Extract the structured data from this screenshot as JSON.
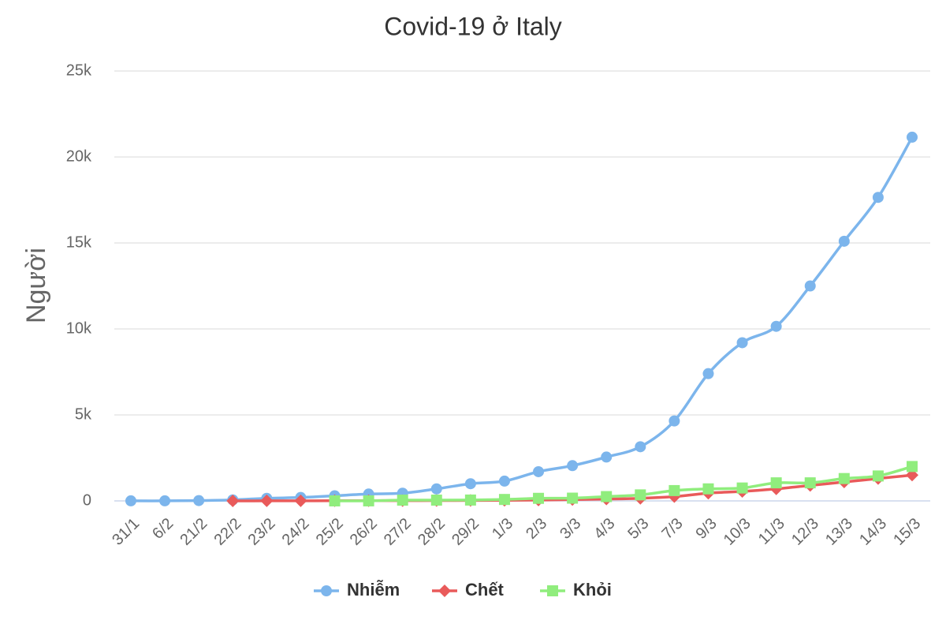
{
  "chart_data": {
    "type": "line",
    "title": "Covid-19 ở Italy",
    "y_label": "Người",
    "categories": [
      "31/1",
      "6/2",
      "21/2",
      "22/2",
      "23/2",
      "24/2",
      "25/2",
      "26/2",
      "27/2",
      "28/2",
      "29/2",
      "1/3",
      "2/3",
      "3/3",
      "4/3",
      "5/3",
      "7/3",
      "9/3",
      "10/3",
      "11/3",
      "12/3",
      "13/3",
      "14/3",
      "15/3"
    ],
    "series": [
      {
        "name": "Nhiễm",
        "color": "#7cb5ec",
        "marker": "circle",
        "values": [
          3,
          3,
          20,
          60,
          150,
          200,
          300,
          400,
          450,
          700,
          1000,
          1150,
          1700,
          2050,
          2550,
          3150,
          4650,
          7400,
          9200,
          10150,
          12500,
          15100,
          17650,
          21150
        ]
      },
      {
        "name": "Chết",
        "color": "#e95a5a",
        "marker": "diamond",
        "values": [
          null,
          null,
          null,
          2,
          3,
          7,
          10,
          12,
          17,
          21,
          29,
          34,
          52,
          79,
          107,
          150,
          250,
          450,
          550,
          700,
          900,
          1100,
          1300,
          1500
        ]
      },
      {
        "name": "Khỏi",
        "color": "#90ed7d",
        "marker": "square",
        "values": [
          null,
          null,
          null,
          null,
          null,
          null,
          1,
          3,
          45,
          46,
          50,
          83,
          149,
          160,
          250,
          350,
          600,
          700,
          750,
          1050,
          1050,
          1300,
          1450,
          2000
        ]
      }
    ],
    "ylim": [
      0,
      25000
    ],
    "yticks": [
      0,
      {
        "value": 5000,
        "label": "5k"
      },
      {
        "value": 10000,
        "label": "10k"
      },
      {
        "value": 15000,
        "label": "15k"
      },
      {
        "value": 20000,
        "label": "20k"
      },
      {
        "value": 25000,
        "label": "25k"
      }
    ],
    "grid": true,
    "legend": "bottom"
  }
}
